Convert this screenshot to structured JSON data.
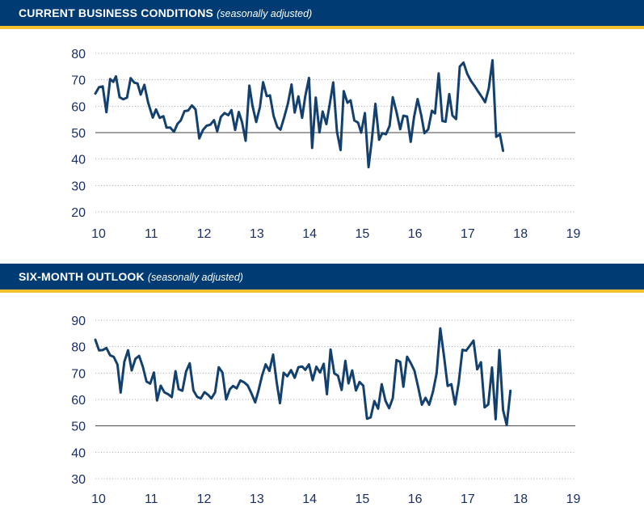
{
  "colors": {
    "header_bg": "#003b73",
    "accent": "#f2c12e",
    "line": "#14406e",
    "grid": "#9aa3ad",
    "ref_line": "#444444",
    "tick_text": "#1a2f63"
  },
  "panels": [
    {
      "title": "CURRENT BUSINESS CONDITIONS",
      "subtitle": "(seasonally adjusted)"
    },
    {
      "title": "SIX-MONTH OUTLOOK",
      "subtitle": "(seasonally adjusted)"
    }
  ],
  "chart_data": [
    {
      "type": "line",
      "title": "CURRENT BUSINESS CONDITIONS",
      "subtitle": "(seasonally adjusted)",
      "xlabel": "",
      "ylabel": "",
      "xlim": [
        10,
        19.1
      ],
      "ylim": [
        20,
        80
      ],
      "yticks": [
        80,
        70,
        60,
        50,
        40,
        30,
        20
      ],
      "xticks": [
        10,
        11,
        12,
        13,
        14,
        15,
        16,
        17,
        18,
        19
      ],
      "grid": "horizontal-dotted",
      "reference_line": 50,
      "series": [
        {
          "points": [
            [
              10.0,
              64.8
            ],
            [
              10.07,
              67.2
            ],
            [
              10.14,
              67.5
            ],
            [
              10.21,
              57.7
            ],
            [
              10.28,
              70.3
            ],
            [
              10.34,
              69.2
            ],
            [
              10.39,
              71.3
            ],
            [
              10.46,
              63.4
            ],
            [
              10.53,
              62.6
            ],
            [
              10.6,
              63.3
            ],
            [
              10.67,
              70.6
            ],
            [
              10.74,
              68.9
            ],
            [
              10.8,
              68.6
            ],
            [
              10.86,
              64.4
            ],
            [
              10.93,
              68.1
            ],
            [
              11.0,
              61.4
            ],
            [
              11.09,
              55.7
            ],
            [
              11.15,
              58.8
            ],
            [
              11.22,
              55.6
            ],
            [
              11.29,
              56.2
            ],
            [
              11.35,
              51.9
            ],
            [
              11.42,
              51.9
            ],
            [
              11.49,
              50.3
            ],
            [
              11.56,
              53.4
            ],
            [
              11.62,
              54.6
            ],
            [
              11.69,
              58.1
            ],
            [
              11.76,
              58.4
            ],
            [
              11.83,
              60.3
            ],
            [
              11.9,
              58.8
            ],
            [
              11.97,
              47.8
            ],
            [
              12.04,
              51.0
            ],
            [
              12.11,
              52.6
            ],
            [
              12.18,
              53.0
            ],
            [
              12.25,
              54.7
            ],
            [
              12.31,
              50.5
            ],
            [
              12.38,
              56.0
            ],
            [
              12.45,
              57.4
            ],
            [
              12.52,
              56.6
            ],
            [
              12.58,
              58.5
            ],
            [
              12.65,
              51.0
            ],
            [
              12.72,
              57.8
            ],
            [
              12.78,
              54.0
            ],
            [
              12.85,
              46.9
            ],
            [
              12.92,
              67.8
            ],
            [
              12.98,
              60.1
            ],
            [
              13.05,
              54.0
            ],
            [
              13.12,
              59.7
            ],
            [
              13.18,
              69.1
            ],
            [
              13.25,
              63.8
            ],
            [
              13.31,
              64.1
            ],
            [
              13.38,
              56.3
            ],
            [
              13.45,
              52.1
            ],
            [
              13.51,
              51.1
            ],
            [
              13.58,
              55.8
            ],
            [
              13.65,
              61.0
            ],
            [
              13.72,
              68.2
            ],
            [
              13.78,
              57.6
            ],
            [
              13.85,
              63.7
            ],
            [
              13.92,
              55.6
            ],
            [
              13.98,
              63.8
            ],
            [
              14.05,
              70.7
            ],
            [
              14.11,
              44.2
            ],
            [
              14.18,
              63.3
            ],
            [
              14.25,
              50.1
            ],
            [
              14.31,
              58.0
            ],
            [
              14.38,
              53.2
            ],
            [
              14.45,
              61.6
            ],
            [
              14.51,
              69.0
            ],
            [
              14.58,
              50.4
            ],
            [
              14.65,
              43.4
            ],
            [
              14.71,
              65.7
            ],
            [
              14.78,
              61.3
            ],
            [
              14.84,
              62.2
            ],
            [
              14.91,
              54.6
            ],
            [
              14.98,
              53.8
            ],
            [
              15.04,
              50.0
            ],
            [
              15.11,
              57.4
            ],
            [
              15.18,
              36.9
            ],
            [
              15.24,
              46.7
            ],
            [
              15.31,
              60.9
            ],
            [
              15.38,
              47.3
            ],
            [
              15.44,
              49.8
            ],
            [
              15.51,
              49.4
            ],
            [
              15.58,
              52.6
            ],
            [
              15.64,
              63.4
            ],
            [
              15.71,
              57.8
            ],
            [
              15.78,
              51.3
            ],
            [
              15.84,
              56.4
            ],
            [
              15.91,
              56.1
            ],
            [
              15.98,
              46.5
            ],
            [
              16.04,
              55.7
            ],
            [
              16.11,
              62.7
            ],
            [
              16.18,
              56.5
            ],
            [
              16.24,
              49.8
            ],
            [
              16.31,
              51.2
            ],
            [
              16.38,
              58.3
            ],
            [
              16.44,
              57.3
            ],
            [
              16.51,
              72.4
            ],
            [
              16.58,
              54.4
            ],
            [
              16.64,
              54.1
            ],
            [
              16.71,
              64.6
            ],
            [
              16.77,
              56.5
            ],
            [
              16.84,
              55.1
            ],
            [
              16.91,
              75.0
            ],
            [
              16.98,
              76.5
            ],
            [
              17.05,
              72.3
            ],
            [
              17.12,
              69.6
            ],
            [
              17.19,
              67.7
            ],
            [
              17.26,
              65.5
            ],
            [
              17.33,
              63.4
            ],
            [
              17.39,
              61.5
            ],
            [
              17.46,
              66.8
            ],
            [
              17.53,
              77.4
            ],
            [
              17.6,
              48.4
            ],
            [
              17.67,
              49.4
            ],
            [
              17.73,
              43.1
            ]
          ]
        }
      ],
      "x_display_offset": 0
    },
    {
      "type": "line",
      "title": "SIX-MONTH OUTLOOK",
      "subtitle": "(seasonally adjusted)",
      "xlabel": "",
      "ylabel": "",
      "xlim": [
        10,
        19.1
      ],
      "ylim": [
        30,
        90
      ],
      "yticks": [
        90,
        80,
        70,
        60,
        50,
        40,
        30
      ],
      "xticks": [
        10,
        11,
        12,
        13,
        14,
        15,
        16,
        17,
        18,
        19
      ],
      "grid": "horizontal-dotted",
      "reference_line": 50,
      "series": [
        {
          "points": [
            [
              10.0,
              82.6
            ],
            [
              10.07,
              78.6
            ],
            [
              10.14,
              78.7
            ],
            [
              10.21,
              79.5
            ],
            [
              10.28,
              76.7
            ],
            [
              10.35,
              76.1
            ],
            [
              10.42,
              73.2
            ],
            [
              10.48,
              62.6
            ],
            [
              10.55,
              74.3
            ],
            [
              10.62,
              78.6
            ],
            [
              10.69,
              71.0
            ],
            [
              10.76,
              75.4
            ],
            [
              10.83,
              76.5
            ],
            [
              10.9,
              72.5
            ],
            [
              10.97,
              66.8
            ],
            [
              11.04,
              66.0
            ],
            [
              11.11,
              70.2
            ],
            [
              11.17,
              59.6
            ],
            [
              11.24,
              65.2
            ],
            [
              11.31,
              62.7
            ],
            [
              11.38,
              62.0
            ],
            [
              11.45,
              60.9
            ],
            [
              11.52,
              70.7
            ],
            [
              11.58,
              63.9
            ],
            [
              11.65,
              63.3
            ],
            [
              11.72,
              70.6
            ],
            [
              11.79,
              73.7
            ],
            [
              11.86,
              63.4
            ],
            [
              11.93,
              61.0
            ],
            [
              12.0,
              60.4
            ],
            [
              12.07,
              62.8
            ],
            [
              12.14,
              61.7
            ],
            [
              12.2,
              60.4
            ],
            [
              12.27,
              62.7
            ],
            [
              12.34,
              72.2
            ],
            [
              12.41,
              70.2
            ],
            [
              12.48,
              60.0
            ],
            [
              12.55,
              63.9
            ],
            [
              12.61,
              65.1
            ],
            [
              12.68,
              64.2
            ],
            [
              12.75,
              67.2
            ],
            [
              12.82,
              66.5
            ],
            [
              12.89,
              65.3
            ],
            [
              12.96,
              62.3
            ],
            [
              13.03,
              58.9
            ],
            [
              13.09,
              63.1
            ],
            [
              13.16,
              69.0
            ],
            [
              13.23,
              73.3
            ],
            [
              13.3,
              70.8
            ],
            [
              13.37,
              77.0
            ],
            [
              13.44,
              66.3
            ],
            [
              13.5,
              58.6
            ],
            [
              13.57,
              70.1
            ],
            [
              13.64,
              68.8
            ],
            [
              13.71,
              71.1
            ],
            [
              13.78,
              68.2
            ],
            [
              13.85,
              72.2
            ],
            [
              13.92,
              72.5
            ],
            [
              13.98,
              71.2
            ],
            [
              14.05,
              73.3
            ],
            [
              14.12,
              67.3
            ],
            [
              14.19,
              72.4
            ],
            [
              14.26,
              70.2
            ],
            [
              14.33,
              73.5
            ],
            [
              14.39,
              62.0
            ],
            [
              14.46,
              78.9
            ],
            [
              14.53,
              69.9
            ],
            [
              14.6,
              69.0
            ],
            [
              14.67,
              63.6
            ],
            [
              14.74,
              74.6
            ],
            [
              14.8,
              66.1
            ],
            [
              14.87,
              71.0
            ],
            [
              14.94,
              63.4
            ],
            [
              15.01,
              66.6
            ],
            [
              15.08,
              65.2
            ],
            [
              15.15,
              52.7
            ],
            [
              15.22,
              53.2
            ],
            [
              15.29,
              59.4
            ],
            [
              15.36,
              56.5
            ],
            [
              15.43,
              65.8
            ],
            [
              15.5,
              59.5
            ],
            [
              15.57,
              56.7
            ],
            [
              15.64,
              60.5
            ],
            [
              15.71,
              74.9
            ],
            [
              15.78,
              74.2
            ],
            [
              15.84,
              64.8
            ],
            [
              15.91,
              76.2
            ],
            [
              15.98,
              73.8
            ],
            [
              16.05,
              70.9
            ],
            [
              16.12,
              64.7
            ],
            [
              16.19,
              58.0
            ],
            [
              16.26,
              60.6
            ],
            [
              16.33,
              58.0
            ],
            [
              16.4,
              62.9
            ],
            [
              16.47,
              69.8
            ],
            [
              16.54,
              86.9
            ],
            [
              16.61,
              76.4
            ],
            [
              16.68,
              65.1
            ],
            [
              16.75,
              65.8
            ],
            [
              16.82,
              58.1
            ],
            [
              16.89,
              66.4
            ],
            [
              16.96,
              78.8
            ],
            [
              17.03,
              78.5
            ],
            [
              17.1,
              80.4
            ],
            [
              17.17,
              82.3
            ],
            [
              17.24,
              71.4
            ],
            [
              17.31,
              74.1
            ],
            [
              17.38,
              57.0
            ],
            [
              17.45,
              58.1
            ],
            [
              17.52,
              72.1
            ],
            [
              17.59,
              52.5
            ],
            [
              17.66,
              78.7
            ],
            [
              17.73,
              56.0
            ],
            [
              17.8,
              50.3
            ],
            [
              17.87,
              63.3
            ]
          ]
        }
      ],
      "x_display_offset": 0
    }
  ]
}
